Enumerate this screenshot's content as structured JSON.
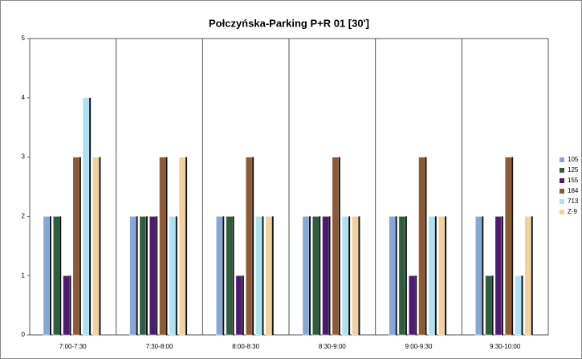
{
  "chart_data": {
    "type": "bar",
    "title": "Połczyńska-Parking P+R 01 [30']",
    "categories": [
      "7:00-7:30",
      "7:30-8:00",
      "8:00-8:30",
      "8:30-9:00",
      "9:00-9:30",
      "9:30-10:00"
    ],
    "series": [
      {
        "name": "105",
        "color": "#86a8d8",
        "values": [
          2,
          2,
          2,
          2,
          2,
          2
        ]
      },
      {
        "name": "125",
        "color": "#2f5e3e",
        "values": [
          2,
          2,
          2,
          2,
          2,
          1
        ]
      },
      {
        "name": "155",
        "color": "#4d1b72",
        "values": [
          1,
          2,
          1,
          2,
          1,
          2
        ]
      },
      {
        "name": "184",
        "color": "#8e5a33",
        "values": [
          3,
          3,
          3,
          3,
          3,
          3
        ]
      },
      {
        "name": "713",
        "color": "#ace3f1",
        "values": [
          4,
          2,
          2,
          2,
          2,
          1
        ]
      },
      {
        "name": "Z-9",
        "color": "#f1d29e",
        "values": [
          3,
          3,
          2,
          2,
          2,
          2
        ]
      }
    ],
    "ylim": [
      0,
      5
    ],
    "yticks": [
      0,
      1,
      2,
      3,
      4,
      5
    ],
    "legend": "right"
  }
}
